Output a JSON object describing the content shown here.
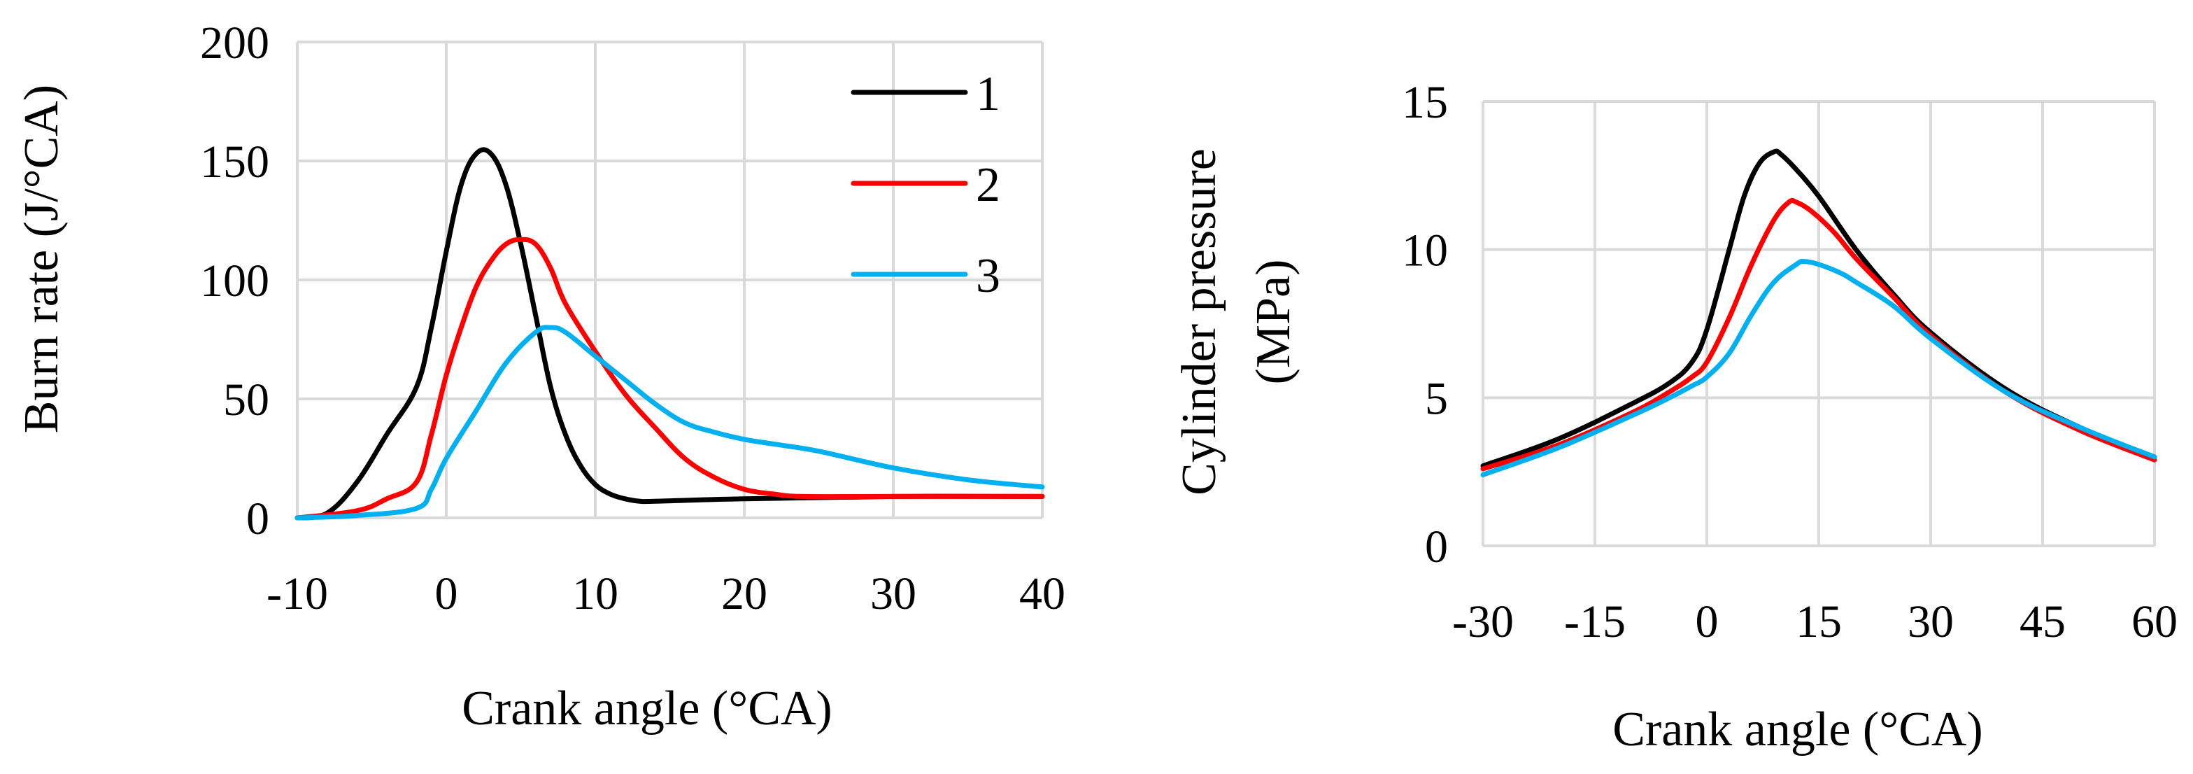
{
  "chart_data": [
    {
      "type": "line",
      "title": "",
      "xlabel": "Crank angle (°CA)",
      "ylabel": "Burn rate (J/°CA)",
      "xlim": [
        -10,
        40
      ],
      "ylim": [
        0,
        200
      ],
      "xticks": [
        -10,
        0,
        10,
        20,
        30,
        40
      ],
      "yticks": [
        0,
        50,
        100,
        150,
        200
      ],
      "grid": true,
      "legend_position": "top-right",
      "series": [
        {
          "name": "1",
          "color": "#000000",
          "x": [
            -10,
            -8,
            -6,
            -4,
            -2,
            -1,
            0,
            1,
            2,
            3,
            4,
            5,
            6,
            7,
            8,
            9,
            10,
            11,
            12,
            13,
            14,
            20,
            30,
            40
          ],
          "y": [
            0,
            2,
            15,
            35,
            55,
            80,
            112,
            140,
            153,
            153,
            140,
            115,
            85,
            55,
            35,
            22,
            14,
            10,
            8,
            7,
            7,
            8,
            9,
            9
          ]
        },
        {
          "name": "2",
          "color": "#ff0000",
          "x": [
            -10,
            -6,
            -4,
            -2,
            -1,
            0,
            1,
            2,
            3,
            4,
            5,
            6,
            7,
            8,
            10,
            12,
            14,
            16,
            18,
            20,
            22,
            24,
            30,
            40
          ],
          "y": [
            0,
            3,
            8,
            15,
            35,
            60,
            80,
            97,
            108,
            115,
            117,
            115,
            105,
            90,
            70,
            52,
            38,
            25,
            17,
            12,
            10,
            9,
            9,
            9
          ]
        },
        {
          "name": "3",
          "color": "#00b0f0",
          "x": [
            -10,
            -6,
            -2,
            -1,
            0,
            2,
            4,
            6,
            7,
            8,
            10,
            12,
            14,
            16,
            18,
            20,
            22,
            25,
            30,
            35,
            40
          ],
          "y": [
            0,
            1,
            4,
            12,
            25,
            45,
            65,
            78,
            80,
            78,
            68,
            58,
            48,
            40,
            36,
            33,
            31,
            28,
            21,
            16,
            13
          ]
        }
      ]
    },
    {
      "type": "line",
      "title": "",
      "xlabel": "Crank angle (°CA)",
      "ylabel": "Cylinder pressure (MPa)",
      "xlim": [
        -30,
        60
      ],
      "ylim": [
        0,
        15
      ],
      "xticks": [
        -30,
        -15,
        0,
        15,
        30,
        45,
        60
      ],
      "yticks": [
        0,
        5,
        10,
        15
      ],
      "grid": true,
      "series": [
        {
          "color": "#000000",
          "x": [
            -30,
            -20,
            -10,
            -5,
            -2,
            0,
            3,
            5,
            7,
            9,
            10,
            12,
            15,
            20,
            25,
            30,
            40,
            50,
            60
          ],
          "y": [
            2.7,
            3.6,
            4.8,
            5.5,
            6.2,
            7.3,
            10.0,
            11.8,
            12.9,
            13.3,
            13.2,
            12.7,
            11.8,
            10.0,
            8.5,
            7.2,
            5.3,
            4.0,
            3.0
          ]
        },
        {
          "color": "#ff0000",
          "x": [
            -30,
            -20,
            -10,
            -5,
            -2,
            0,
            3,
            6,
            9,
            11,
            12,
            14,
            17,
            20,
            25,
            30,
            40,
            50,
            60
          ],
          "y": [
            2.6,
            3.4,
            4.5,
            5.2,
            5.7,
            6.2,
            7.7,
            9.5,
            11.0,
            11.6,
            11.6,
            11.3,
            10.6,
            9.7,
            8.4,
            7.1,
            5.2,
            3.9,
            2.9
          ]
        },
        {
          "color": "#00b0f0",
          "x": [
            -30,
            -20,
            -10,
            -5,
            -2,
            0,
            3,
            6,
            9,
            12,
            13,
            15,
            18,
            20,
            25,
            30,
            40,
            50,
            60
          ],
          "y": [
            2.4,
            3.3,
            4.4,
            5.0,
            5.4,
            5.7,
            6.5,
            7.8,
            8.9,
            9.5,
            9.6,
            9.5,
            9.2,
            8.9,
            8.1,
            7.0,
            5.2,
            4.0,
            3.0
          ]
        }
      ]
    }
  ]
}
